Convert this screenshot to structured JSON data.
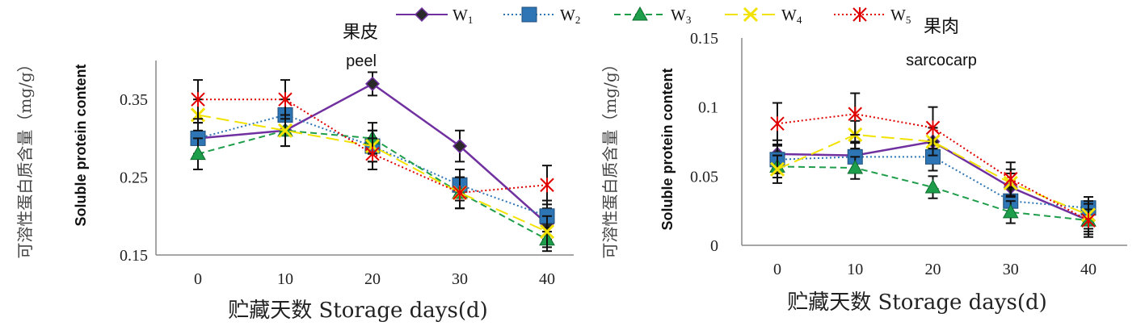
{
  "legend": [
    {
      "name": "W",
      "sub": "1",
      "color": "#7030A0",
      "dash": "",
      "marker": "diamond",
      "mcolor": "#111111"
    },
    {
      "name": "W",
      "sub": "2",
      "color": "#2E75B6",
      "dash": "2,3",
      "marker": "square",
      "mcolor": "#2E75B6"
    },
    {
      "name": "W",
      "sub": "3",
      "color": "#1E9E4A",
      "dash": "8,5",
      "marker": "triangle",
      "mcolor": "#1E9E4A"
    },
    {
      "name": "W",
      "sub": "4",
      "color": "#F2E200",
      "dash": "16,7",
      "marker": "x",
      "mcolor": "#F2E200"
    },
    {
      "name": "W",
      "sub": "5",
      "color": "#E00000",
      "dash": "2,3",
      "marker": "star",
      "mcolor": "#E00000"
    }
  ],
  "chart_data": [
    {
      "type": "line",
      "title_cn": "果皮",
      "title_en": "peel",
      "ylabel_cn": "可溶性蛋白质含量（mg/g）",
      "ylabel_en": "Soluble protein content",
      "xlabel": "贮藏天数 Storage days(d)",
      "x": [
        0,
        10,
        20,
        30,
        40
      ],
      "ylim": [
        0.15,
        0.4
      ],
      "yticks": [
        "0.15",
        "0.25",
        "0.35"
      ],
      "ytick_values": [
        0.15,
        0.25,
        0.35
      ],
      "series": [
        {
          "name": "W1",
          "values": [
            0.3,
            0.31,
            0.37,
            0.29,
            0.19
          ],
          "err": [
            0.02,
            0.02,
            0.015,
            0.02,
            0.02
          ]
        },
        {
          "name": "W2",
          "values": [
            0.3,
            0.33,
            0.29,
            0.24,
            0.2
          ],
          "err": [
            0.02,
            0.02,
            0.02,
            0.02,
            0.02
          ]
        },
        {
          "name": "W3",
          "values": [
            0.28,
            0.31,
            0.3,
            0.23,
            0.17
          ],
          "err": [
            0.02,
            0.02,
            0.02,
            0.02,
            0.015
          ]
        },
        {
          "name": "W4",
          "values": [
            0.33,
            0.31,
            0.29,
            0.23,
            0.18
          ],
          "err": [
            0.02,
            0.02,
            0.02,
            0.02,
            0.02
          ]
        },
        {
          "name": "W5",
          "values": [
            0.35,
            0.35,
            0.28,
            0.23,
            0.24
          ],
          "err": [
            0.025,
            0.025,
            0.02,
            0.02,
            0.025
          ]
        }
      ]
    },
    {
      "type": "line",
      "title_cn": "果肉",
      "title_en": "sarcocarp",
      "ylabel_cn": "可溶性蛋白质含量（mg/g）",
      "ylabel_en": "Soluble protein content",
      "xlabel": "贮藏天数 Storage days(d)",
      "x": [
        0,
        10,
        20,
        30,
        40
      ],
      "ylim": [
        0,
        0.15
      ],
      "yticks": [
        "0",
        "0.05",
        "0.1",
        "0.15"
      ],
      "ytick_values": [
        0,
        0.05,
        0.1,
        0.15
      ],
      "series": [
        {
          "name": "W1",
          "values": [
            0.066,
            0.065,
            0.075,
            0.042,
            0.018
          ],
          "err": [
            0.01,
            0.01,
            0.01,
            0.01,
            0.01
          ]
        },
        {
          "name": "W2",
          "values": [
            0.062,
            0.064,
            0.064,
            0.032,
            0.027
          ],
          "err": [
            0.01,
            0.01,
            0.01,
            0.01,
            0.008
          ]
        },
        {
          "name": "W3",
          "values": [
            0.057,
            0.056,
            0.042,
            0.024,
            0.018
          ],
          "err": [
            0.008,
            0.008,
            0.008,
            0.008,
            0.008
          ]
        },
        {
          "name": "W4",
          "values": [
            0.055,
            0.08,
            0.075,
            0.045,
            0.022
          ],
          "err": [
            0.01,
            0.01,
            0.01,
            0.01,
            0.01
          ]
        },
        {
          "name": "W5",
          "values": [
            0.088,
            0.095,
            0.085,
            0.048,
            0.018
          ],
          "err": [
            0.015,
            0.015,
            0.015,
            0.012,
            0.012
          ]
        }
      ]
    }
  ]
}
